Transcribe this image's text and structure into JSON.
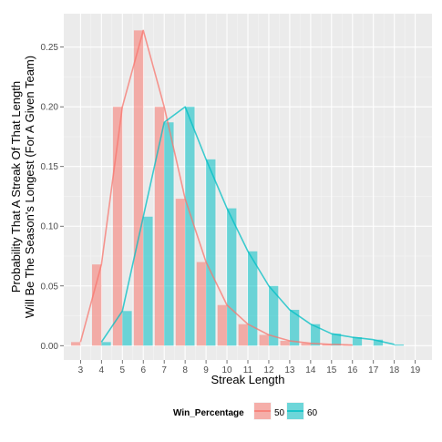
{
  "chart_data": {
    "type": "bar",
    "title": "",
    "xlabel": "Streak Length",
    "ylabel_lines": [
      "Probability That A Streak Of That Length",
      "Will Be The Season's Longest (For A Given Team)"
    ],
    "x_ticks": [
      3,
      4,
      5,
      6,
      7,
      8,
      9,
      10,
      11,
      12,
      13,
      14,
      15,
      16,
      17,
      18,
      19
    ],
    "y_ticks": [
      0.0,
      0.05,
      0.1,
      0.15,
      0.2,
      0.25
    ],
    "y_tick_labels": [
      "0.00",
      "0.05",
      "0.10",
      "0.15",
      "0.20",
      "0.25"
    ],
    "xlim": [
      2.2,
      19.8
    ],
    "ylim": [
      -0.012,
      0.278
    ],
    "grid": true,
    "legend": {
      "title": "Win_Percentage",
      "position": "bottom",
      "entries": [
        "50",
        "60"
      ]
    },
    "series": [
      {
        "name": "50",
        "color": "#F8766D",
        "x": [
          3,
          4,
          5,
          6,
          7,
          8,
          9,
          10,
          11,
          12,
          13,
          14,
          15,
          16
        ],
        "values": [
          0.003,
          0.068,
          0.2,
          0.264,
          0.2,
          0.123,
          0.07,
          0.034,
          0.018,
          0.009,
          0.004,
          0.002,
          0.001,
          0.0005
        ]
      },
      {
        "name": "60",
        "color": "#00BFC4",
        "x": [
          4,
          5,
          6,
          7,
          8,
          9,
          10,
          11,
          12,
          13,
          14,
          15,
          16,
          17,
          18
        ],
        "values": [
          0.003,
          0.029,
          0.108,
          0.187,
          0.2,
          0.156,
          0.115,
          0.079,
          0.05,
          0.03,
          0.018,
          0.01,
          0.007,
          0.005,
          0.001
        ]
      }
    ]
  }
}
